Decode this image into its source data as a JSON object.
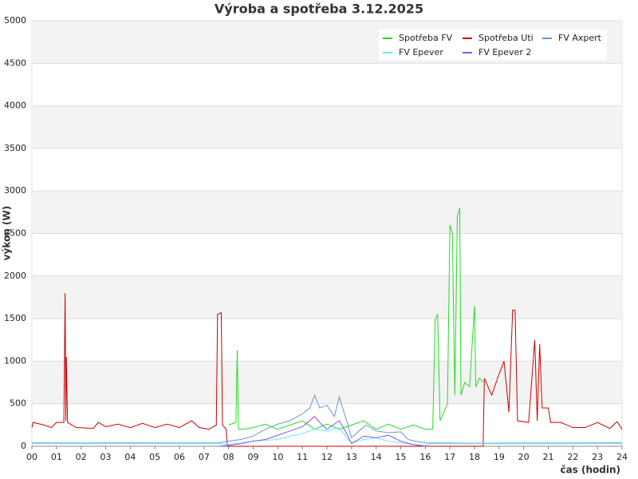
{
  "chart_data": {
    "type": "line",
    "title": "Výroba a spotřeba 3.12.2025",
    "y_label": "výkon (W)",
    "x_label": "čas (hodin)",
    "xlim": [
      0,
      24
    ],
    "ylim": [
      0,
      5000
    ],
    "xticks": [
      {
        "value": 0,
        "label": "00"
      },
      {
        "value": 1,
        "label": "01"
      },
      {
        "value": 2,
        "label": "02"
      },
      {
        "value": 3,
        "label": "03"
      },
      {
        "value": 4,
        "label": "04"
      },
      {
        "value": 5,
        "label": "05"
      },
      {
        "value": 6,
        "label": "06"
      },
      {
        "value": 7,
        "label": "07"
      },
      {
        "value": 8,
        "label": "08"
      },
      {
        "value": 9,
        "label": "09"
      },
      10,
      11,
      12,
      13,
      14,
      15,
      16,
      17,
      18,
      19,
      20,
      21,
      22,
      23,
      24
    ],
    "yticks": [
      0,
      500,
      1000,
      1500,
      2000,
      2500,
      3000,
      3500,
      4000,
      4500,
      5000
    ],
    "grid": true,
    "legend": "top-right",
    "series": [
      {
        "name": "Spotřeba FV",
        "color": "#22dd22",
        "x": [
          8.0,
          8.3,
          8.35,
          8.4,
          8.6,
          9.0,
          9.5,
          10,
          10.5,
          11,
          11.5,
          12,
          12.5,
          13,
          13.5,
          14,
          14.5,
          15,
          15.5,
          16,
          16.3,
          16.4,
          16.5,
          16.6,
          16.9,
          17,
          17.1,
          17.2,
          17.3,
          17.4,
          17.45,
          17.6,
          17.8,
          18.0,
          18.05,
          18.2,
          18.35
        ],
        "values": [
          250,
          280,
          1130,
          200,
          200,
          220,
          260,
          200,
          250,
          300,
          200,
          260,
          200,
          250,
          300,
          200,
          260,
          200,
          250,
          200,
          200,
          1500,
          1550,
          300,
          500,
          2600,
          2500,
          600,
          2700,
          2800,
          600,
          750,
          700,
          1650,
          700,
          800,
          750
        ]
      },
      {
        "name": "Spotřeba Uti",
        "color": "#cc0000",
        "x": [
          0,
          0.05,
          0.5,
          0.8,
          1.0,
          1.3,
          1.35,
          1.38,
          1.4,
          1.45,
          1.8,
          2.5,
          2.7,
          3.0,
          3.5,
          4.0,
          4.5,
          5.0,
          5.5,
          6.0,
          6.5,
          6.8,
          7.2,
          7.5,
          7.55,
          7.7,
          7.75,
          7.9,
          7.95,
          18.35,
          18.4,
          18.7,
          19.0,
          19.2,
          19.4,
          19.55,
          19.65,
          19.75,
          20.2,
          20.45,
          20.55,
          20.65,
          20.75,
          21.0,
          21.1,
          21.5,
          22,
          22.5,
          23,
          23.5,
          23.8,
          24
        ],
        "values": [
          220,
          280,
          250,
          220,
          280,
          280,
          1800,
          300,
          1050,
          280,
          220,
          210,
          280,
          230,
          260,
          220,
          270,
          220,
          260,
          220,
          300,
          220,
          200,
          250,
          1550,
          1570,
          250,
          200,
          0,
          0,
          800,
          600,
          850,
          1000,
          400,
          1600,
          1600,
          300,
          280,
          1250,
          300,
          1200,
          450,
          450,
          280,
          280,
          220,
          220,
          280,
          210,
          290,
          200
        ]
      },
      {
        "name": "FV Axpert",
        "color": "#6699cc",
        "x": [
          0,
          2,
          4,
          6,
          7.6,
          8,
          8.5,
          9,
          9.5,
          10,
          10.5,
          10.8,
          11,
          11.3,
          11.5,
          11.7,
          12,
          12.3,
          12.5,
          12.8,
          13,
          13.3,
          13.6,
          14,
          14.5,
          15,
          15.3,
          15.6,
          16,
          18,
          20,
          22,
          24
        ],
        "values": [
          40,
          38,
          40,
          38,
          40,
          60,
          80,
          120,
          200,
          260,
          300,
          350,
          380,
          450,
          600,
          450,
          480,
          350,
          580,
          300,
          100,
          180,
          250,
          180,
          160,
          170,
          80,
          60,
          40,
          35,
          38,
          38,
          40
        ]
      },
      {
        "name": "FV Epever",
        "color": "#66eeee",
        "x": [
          0,
          4,
          7.6,
          8,
          9,
          10,
          10.5,
          11,
          11.5,
          12,
          12.5,
          12.8,
          13,
          13.5,
          14,
          14.5,
          15,
          15.5,
          16,
          16.2,
          24
        ],
        "values": [
          30,
          30,
          30,
          20,
          60,
          80,
          120,
          150,
          200,
          180,
          220,
          100,
          40,
          80,
          100,
          60,
          40,
          20,
          10,
          30,
          30
        ]
      },
      {
        "name": "FV Epever 2",
        "color": "#8855ee",
        "x": [
          7.6,
          8,
          8.5,
          9,
          9.5,
          10,
          10.5,
          11,
          11.5,
          11.8,
          12,
          12.5,
          12.8,
          13,
          13.5,
          14,
          14.5,
          15,
          15.5,
          16
        ],
        "values": [
          0,
          10,
          30,
          60,
          80,
          130,
          180,
          230,
          350,
          250,
          200,
          300,
          150,
          30,
          120,
          100,
          130,
          60,
          20,
          0
        ]
      }
    ]
  }
}
